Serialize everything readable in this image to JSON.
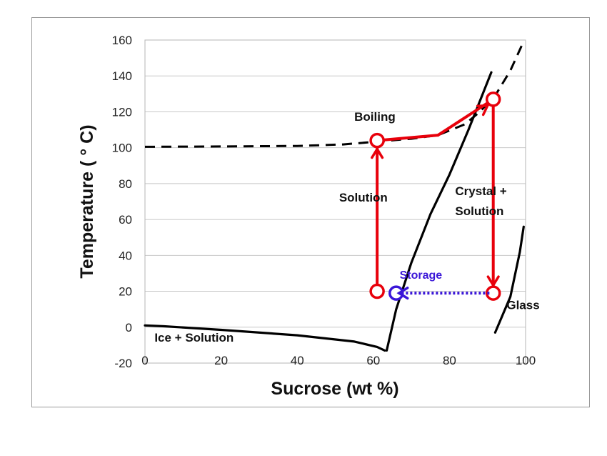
{
  "chart_data": {
    "type": "line",
    "title": "",
    "xlabel": "Sucrose (wt %)",
    "ylabel": "Temperature ( ° C)",
    "xlim": [
      0,
      100
    ],
    "ylim": [
      -20,
      160
    ],
    "x_ticks": [
      0,
      20,
      40,
      60,
      80,
      100
    ],
    "y_ticks": [
      -20,
      0,
      20,
      40,
      60,
      80,
      100,
      120,
      140,
      160
    ],
    "grid": "horizontal",
    "series": [
      {
        "style": "dashed",
        "color": "#000000",
        "points": [
          [
            0,
            100.5
          ],
          [
            20,
            100.7
          ],
          [
            40,
            101
          ],
          [
            52,
            101.8
          ],
          [
            60,
            103.2
          ],
          [
            70,
            105
          ],
          [
            77,
            107
          ],
          [
            84,
            113
          ],
          [
            88,
            120
          ],
          [
            92,
            129
          ],
          [
            96,
            143
          ],
          [
            99,
            157
          ]
        ]
      },
      {
        "style": "solid",
        "color": "#000000",
        "points": [
          [
            63.5,
            -13
          ],
          [
            66,
            10
          ],
          [
            70,
            36
          ],
          [
            75,
            63
          ],
          [
            80,
            85
          ],
          [
            85,
            110
          ],
          [
            91,
            142
          ]
        ]
      },
      {
        "style": "solid",
        "color": "#000000",
        "points": [
          [
            0,
            1
          ],
          [
            5,
            0.5
          ],
          [
            20,
            -1.5
          ],
          [
            40,
            -4.5
          ],
          [
            55,
            -8
          ],
          [
            61,
            -11
          ],
          [
            63,
            -13
          ]
        ]
      },
      {
        "style": "solid",
        "color": "#000000",
        "points": [
          [
            92,
            -3
          ],
          [
            96,
            17
          ],
          [
            98.5,
            42
          ],
          [
            99.5,
            56
          ]
        ]
      }
    ],
    "process_path": {
      "color": "#e8000b",
      "points": [
        [
          61,
          20
        ],
        [
          61,
          104
        ],
        [
          77,
          107
        ],
        [
          91.5,
          127
        ],
        [
          91.5,
          19
        ]
      ]
    },
    "storage_arrow": {
      "color": "#3a16d8",
      "from": [
        90.5,
        19
      ],
      "to": [
        66,
        19
      ],
      "label": "Storage"
    },
    "annotations": [
      {
        "text": "Boiling",
        "x": 55,
        "y": 115
      },
      {
        "text": "Solution",
        "x": 51,
        "y": 70
      },
      {
        "text": "Crystal +",
        "x": 81.5,
        "y": 73.5
      },
      {
        "text": "Solution",
        "x": 81.5,
        "y": 62.5
      },
      {
        "text": "Ice + Solution",
        "x": 2.5,
        "y": -8
      },
      {
        "text": "Glass",
        "x": 95,
        "y": 10
      }
    ]
  }
}
